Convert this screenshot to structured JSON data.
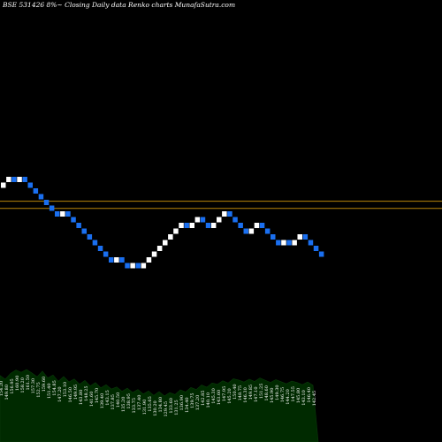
{
  "header": {
    "title": "BSE 531426  8%~  Closing Daily data  Renko  charts MunafaSutra.com"
  },
  "colors": {
    "background": "#000000",
    "up_brick": "#ffffff",
    "down_brick": "#1a6ff0",
    "level_line": "#b8860b",
    "volume_fill": "#002a00",
    "volume_line": "#0a3a0a"
  },
  "chart_data": {
    "type": "renko",
    "title": "BSE 531426  8%~  Closing Daily data  Renko  charts MunafaSutra.com",
    "xlabel": "",
    "ylabel": "",
    "grid": false,
    "reference_lines": [
      139,
      134
    ],
    "bricks": [
      {
        "dir": "up",
        "high": 152
      },
      {
        "dir": "up",
        "high": 156
      },
      {
        "dir": "down",
        "high": 156
      },
      {
        "dir": "up",
        "high": 156
      },
      {
        "dir": "down",
        "high": 156
      },
      {
        "dir": "down",
        "high": 152
      },
      {
        "dir": "down",
        "high": 148
      },
      {
        "dir": "down",
        "high": 144
      },
      {
        "dir": "down",
        "high": 140
      },
      {
        "dir": "down",
        "high": 136
      },
      {
        "dir": "down",
        "high": 132
      },
      {
        "dir": "up",
        "high": 132
      },
      {
        "dir": "down",
        "high": 132
      },
      {
        "dir": "down",
        "high": 128
      },
      {
        "dir": "down",
        "high": 124
      },
      {
        "dir": "down",
        "high": 120
      },
      {
        "dir": "down",
        "high": 116
      },
      {
        "dir": "down",
        "high": 112
      },
      {
        "dir": "down",
        "high": 108
      },
      {
        "dir": "down",
        "high": 104
      },
      {
        "dir": "down",
        "high": 100
      },
      {
        "dir": "up",
        "high": 100
      },
      {
        "dir": "down",
        "high": 100
      },
      {
        "dir": "down",
        "high": 96
      },
      {
        "dir": "up",
        "high": 96
      },
      {
        "dir": "down",
        "high": 96
      },
      {
        "dir": "up",
        "high": 96
      },
      {
        "dir": "up",
        "high": 100
      },
      {
        "dir": "up",
        "high": 104
      },
      {
        "dir": "up",
        "high": 108
      },
      {
        "dir": "up",
        "high": 112
      },
      {
        "dir": "up",
        "high": 116
      },
      {
        "dir": "up",
        "high": 120
      },
      {
        "dir": "up",
        "high": 124
      },
      {
        "dir": "down",
        "high": 124
      },
      {
        "dir": "up",
        "high": 124
      },
      {
        "dir": "up",
        "high": 128
      },
      {
        "dir": "down",
        "high": 128
      },
      {
        "dir": "down",
        "high": 124
      },
      {
        "dir": "up",
        "high": 124
      },
      {
        "dir": "up",
        "high": 128
      },
      {
        "dir": "up",
        "high": 132
      },
      {
        "dir": "down",
        "high": 132
      },
      {
        "dir": "down",
        "high": 128
      },
      {
        "dir": "down",
        "high": 124
      },
      {
        "dir": "down",
        "high": 120
      },
      {
        "dir": "up",
        "high": 120
      },
      {
        "dir": "up",
        "high": 124
      },
      {
        "dir": "down",
        "high": 124
      },
      {
        "dir": "down",
        "high": 120
      },
      {
        "dir": "down",
        "high": 116
      },
      {
        "dir": "down",
        "high": 112
      },
      {
        "dir": "up",
        "high": 112
      },
      {
        "dir": "down",
        "high": 112
      },
      {
        "dir": "up",
        "high": 112
      },
      {
        "dir": "up",
        "high": 116
      },
      {
        "dir": "down",
        "high": 116
      },
      {
        "dir": "down",
        "high": 112
      },
      {
        "dir": "down",
        "high": 108
      },
      {
        "dir": "down",
        "high": 104
      }
    ],
    "volume_labels": [
      "154.20",
      "149.80",
      "156.95",
      "160.90",
      "158.20",
      "161.50",
      "157.30",
      "152.75",
      "159.60",
      "151.40",
      "154.85",
      "147.20",
      "153.10",
      "146.50",
      "149.95",
      "143.80",
      "148.25",
      "141.60",
      "145.70",
      "139.40",
      "143.15",
      "137.85",
      "140.50",
      "135.20",
      "138.95",
      "133.75",
      "137.40",
      "131.90",
      "135.65",
      "130.20",
      "134.80",
      "129.45",
      "133.60",
      "131.25",
      "136.90",
      "134.40",
      "139.75",
      "137.20",
      "142.85",
      "140.10",
      "145.30",
      "143.60",
      "147.95",
      "145.20",
      "150.40",
      "148.75",
      "146.30",
      "149.85",
      "147.10",
      "151.25",
      "148.60",
      "145.90",
      "149.30",
      "146.75",
      "144.20",
      "147.55",
      "145.80",
      "143.10",
      "146.40",
      "142.45"
    ]
  }
}
